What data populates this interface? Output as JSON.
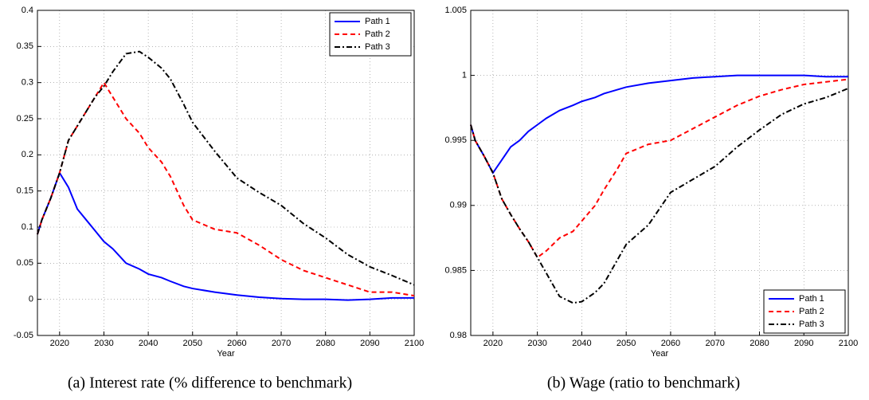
{
  "chart_data": [
    {
      "type": "line",
      "caption": "(a) Interest rate (% difference to benchmark)",
      "xlabel": "Year",
      "x": [
        2015,
        2016,
        2018,
        2020,
        2022,
        2024,
        2026,
        2028,
        2030,
        2032,
        2035,
        2038,
        2040,
        2043,
        2045,
        2048,
        2050,
        2055,
        2060,
        2065,
        2070,
        2075,
        2080,
        2085,
        2090,
        2095,
        2100
      ],
      "series": [
        {
          "name": "Path 1",
          "color": "#0000ff",
          "linestyle": "solid",
          "values": [
            0.09,
            0.11,
            0.14,
            0.175,
            0.155,
            0.125,
            0.11,
            0.095,
            0.08,
            0.07,
            0.05,
            0.042,
            0.035,
            0.03,
            0.025,
            0.018,
            0.015,
            0.01,
            0.006,
            0.003,
            0.001,
            0,
            0,
            -0.001,
            0,
            0.002,
            0.002
          ]
        },
        {
          "name": "Path 2",
          "color": "#ff0000",
          "linestyle": "dashed",
          "values": [
            0.09,
            0.11,
            0.14,
            0.175,
            0.22,
            0.24,
            0.26,
            0.28,
            0.3,
            0.28,
            0.25,
            0.23,
            0.21,
            0.19,
            0.17,
            0.13,
            0.11,
            0.097,
            0.092,
            0.075,
            0.055,
            0.04,
            0.03,
            0.02,
            0.01,
            0.01,
            0.005
          ]
        },
        {
          "name": "Path 3",
          "color": "#000000",
          "linestyle": "dashdot",
          "values": [
            0.09,
            0.11,
            0.14,
            0.175,
            0.22,
            0.24,
            0.26,
            0.28,
            0.295,
            0.315,
            0.34,
            0.343,
            0.335,
            0.32,
            0.305,
            0.27,
            0.245,
            0.205,
            0.168,
            0.148,
            0.13,
            0.105,
            0.085,
            0.062,
            0.045,
            0.033,
            0.02
          ]
        }
      ],
      "xlim": [
        2015,
        2100
      ],
      "xticks": [
        2020,
        2030,
        2040,
        2050,
        2060,
        2070,
        2080,
        2090,
        2100
      ],
      "ylim": [
        -0.05,
        0.4
      ],
      "yticks": [
        -0.05,
        0,
        0.05,
        0.1,
        0.15,
        0.2,
        0.25,
        0.3,
        0.35,
        0.4
      ],
      "grid": true,
      "legend": "upper right"
    },
    {
      "type": "line",
      "caption": "(b) Wage (ratio to benchmark)",
      "xlabel": "Year",
      "x": [
        2015,
        2016,
        2018,
        2020,
        2022,
        2024,
        2026,
        2028,
        2030,
        2032,
        2035,
        2038,
        2040,
        2043,
        2045,
        2048,
        2050,
        2055,
        2060,
        2065,
        2070,
        2075,
        2080,
        2085,
        2090,
        2095,
        2100
      ],
      "series": [
        {
          "name": "Path 1",
          "color": "#0000ff",
          "linestyle": "solid",
          "values": [
            0.9962,
            0.995,
            0.9938,
            0.9925,
            0.9935,
            0.9945,
            0.995,
            0.9957,
            0.9962,
            0.9967,
            0.9973,
            0.9977,
            0.998,
            0.9983,
            0.9986,
            0.9989,
            0.9991,
            0.9994,
            0.9996,
            0.9998,
            0.9999,
            1.0,
            1.0,
            1.0,
            1.0,
            0.9999,
            0.9999
          ]
        },
        {
          "name": "Path 2",
          "color": "#ff0000",
          "linestyle": "dashed",
          "values": [
            0.9962,
            0.995,
            0.9938,
            0.9925,
            0.9905,
            0.9893,
            0.9882,
            0.9872,
            0.986,
            0.9865,
            0.9875,
            0.988,
            0.9888,
            0.99,
            0.9912,
            0.9928,
            0.994,
            0.9947,
            0.995,
            0.9959,
            0.9968,
            0.9977,
            0.9984,
            0.9989,
            0.9993,
            0.9995,
            0.9997
          ]
        },
        {
          "name": "Path 3",
          "color": "#000000",
          "linestyle": "dashdot",
          "values": [
            0.9962,
            0.995,
            0.9938,
            0.9925,
            0.9905,
            0.9893,
            0.9882,
            0.9872,
            0.986,
            0.9848,
            0.983,
            0.9825,
            0.9826,
            0.9833,
            0.984,
            0.9858,
            0.987,
            0.9885,
            0.991,
            0.992,
            0.993,
            0.9945,
            0.9958,
            0.997,
            0.9978,
            0.9983,
            0.999
          ]
        }
      ],
      "xlim": [
        2015,
        2100
      ],
      "xticks": [
        2020,
        2030,
        2040,
        2050,
        2060,
        2070,
        2080,
        2090,
        2100
      ],
      "ylim": [
        0.98,
        1.005
      ],
      "yticks": [
        0.98,
        0.985,
        0.99,
        0.995,
        1,
        1.005
      ],
      "grid": true,
      "legend": "lower right"
    }
  ]
}
